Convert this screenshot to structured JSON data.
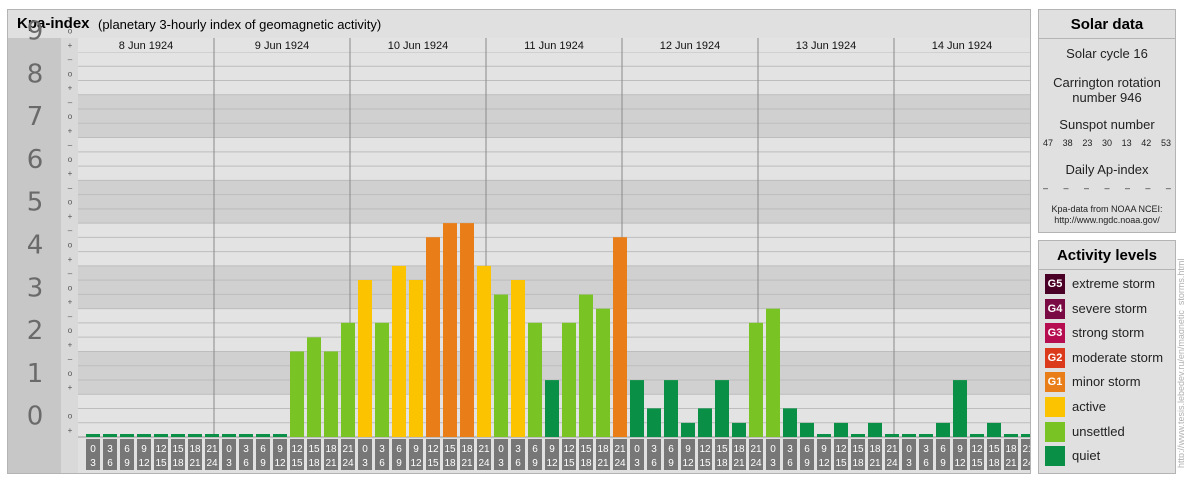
{
  "header": {
    "title": "Kpa-index",
    "subtitle": "(planetary 3-hourly index of geomagnetic activity)"
  },
  "chart_data": {
    "type": "bar",
    "yaxis_values": [
      "0",
      "1",
      "2",
      "3",
      "4",
      "5",
      "6",
      "7",
      "8",
      "9"
    ],
    "thirds_labels": [
      "+",
      "o",
      "–"
    ],
    "days": [
      "8 Jun 1924",
      "9 Jun 1924",
      "10 Jun 1924",
      "11 Jun 1924",
      "12 Jun 1924",
      "13 Jun 1924",
      "14 Jun 1924"
    ],
    "hour_start_labels": [
      "0",
      "3",
      "6",
      "9",
      "12",
      "15",
      "18",
      "21"
    ],
    "hour_end_labels": [
      "3",
      "6",
      "9",
      "12",
      "15",
      "18",
      "21",
      "24"
    ],
    "ylim": [
      0,
      9
    ],
    "values": [
      0,
      0,
      0,
      0,
      0,
      0,
      0,
      0,
      0,
      0,
      0,
      0,
      2.0,
      2.33,
      2.0,
      2.67,
      3.67,
      2.67,
      4.0,
      3.67,
      4.67,
      5.0,
      5.0,
      4.0,
      3.33,
      3.67,
      2.67,
      1.33,
      2.67,
      3.33,
      3.0,
      4.67,
      1.33,
      0.67,
      1.33,
      0.33,
      0.67,
      1.33,
      0.33,
      2.67,
      3.0,
      0.67,
      0.33,
      0,
      0.33,
      0,
      0.33,
      0,
      0,
      0,
      0.33,
      1.33,
      0,
      0.33,
      0,
      0
    ],
    "colors": {
      "quiet": "#0a8f46",
      "unsettled": "#7ac324",
      "active": "#fcc300",
      "minor": "#e97e18",
      "moderate": "#db3b1a",
      "strong": "#b50d50",
      "severe": "#7a0a43",
      "extreme": "#4a0026"
    }
  },
  "solar": {
    "title": "Solar data",
    "cycle": "Solar cycle 16",
    "rotation_line1": "Carrington rotation",
    "rotation_line2": "number 946",
    "sunspot_label": "Sunspot number",
    "sunspots": [
      "47",
      "38",
      "23",
      "30",
      "13",
      "42",
      "53"
    ],
    "ap_label": "Daily Ap-index",
    "ap_values": [
      "–",
      "–",
      "–",
      "–",
      "–",
      "–",
      "–"
    ],
    "note_line1": "Kpa-data from NOAA NCEI:",
    "note_line2": "http://www.ngdc.noaa.gov/"
  },
  "activity": {
    "title": "Activity levels",
    "levels": [
      {
        "badge": "G5",
        "label": "extreme storm",
        "color": "#4a0026"
      },
      {
        "badge": "G4",
        "label": "severe storm",
        "color": "#7a0a43"
      },
      {
        "badge": "G3",
        "label": "strong storm",
        "color": "#b50d50"
      },
      {
        "badge": "G2",
        "label": "moderate storm",
        "color": "#db3b1a"
      },
      {
        "badge": "G1",
        "label": "minor storm",
        "color": "#e97e18"
      },
      {
        "badge": "",
        "label": "active",
        "color": "#fcc300"
      },
      {
        "badge": "",
        "label": "unsettled",
        "color": "#7ac324"
      },
      {
        "badge": "",
        "label": "quiet",
        "color": "#0a8f46"
      }
    ]
  },
  "watermark": "http://www.tesis.lebedev.ru/en/magnetic_storms.html"
}
